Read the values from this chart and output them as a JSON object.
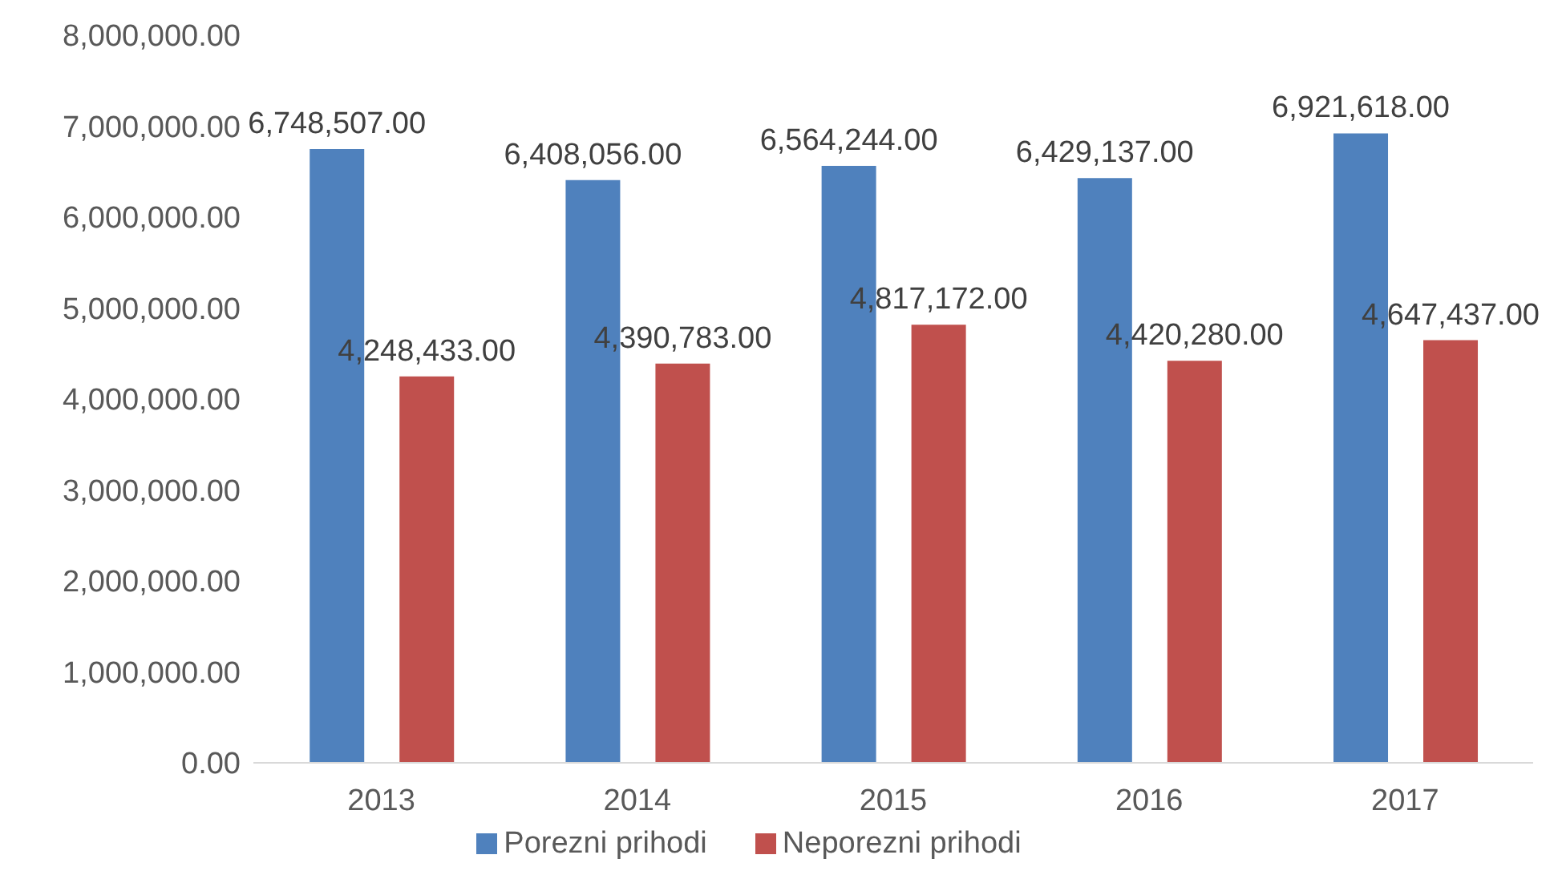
{
  "chart_data": {
    "type": "bar",
    "categories": [
      "2013",
      "2014",
      "2015",
      "2016",
      "2017"
    ],
    "series": [
      {
        "name": "Porezni prihodi",
        "color": "#4f81bd",
        "values": [
          6748507,
          6408056,
          6564244,
          6429137,
          6921618
        ],
        "value_labels": [
          "6,748,507.00",
          "6,408,056.00",
          "6,564,244.00",
          "6,429,137.00",
          "6,921,618.00"
        ]
      },
      {
        "name": "Neporezni prihodi",
        "color": "#c0504d",
        "values": [
          4248433,
          4390783,
          4817172,
          4420280,
          4647437
        ],
        "value_labels": [
          "4,248,433.00",
          "4,390,783.00",
          "4,817,172.00",
          "4,420,280.00",
          "4,647,437.00"
        ]
      }
    ],
    "ylim": [
      0,
      8000000
    ],
    "yticks": [
      {
        "value": 0,
        "label": "0.00"
      },
      {
        "value": 1000000,
        "label": "1,000,000.00"
      },
      {
        "value": 2000000,
        "label": "2,000,000.00"
      },
      {
        "value": 3000000,
        "label": "3,000,000.00"
      },
      {
        "value": 4000000,
        "label": "4,000,000.00"
      },
      {
        "value": 5000000,
        "label": "5,000,000.00"
      },
      {
        "value": 6000000,
        "label": "6,000,000.00"
      },
      {
        "value": 7000000,
        "label": "7,000,000.00"
      },
      {
        "value": 8000000,
        "label": "8,000,000.00"
      }
    ],
    "legend": "bottom"
  }
}
